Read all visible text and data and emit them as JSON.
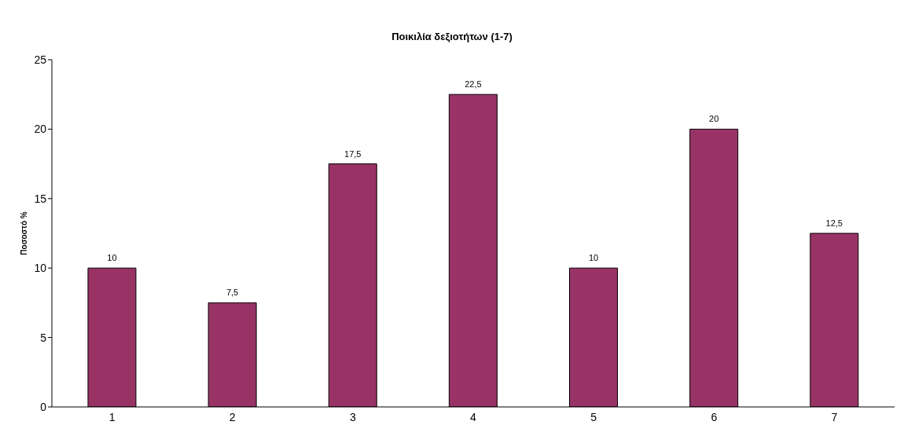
{
  "chart_data": {
    "type": "bar",
    "title": "Ποικιλία δεξιοτήτων (1-7)",
    "ylabel": "Ποσοστό %",
    "categories": [
      "1",
      "2",
      "3",
      "4",
      "5",
      "6",
      "7"
    ],
    "values": [
      10,
      7.5,
      17.5,
      22.5,
      10,
      20,
      12.5
    ],
    "value_labels": [
      "10",
      "7,5",
      "17,5",
      "22,5",
      "10",
      "20",
      "12,5"
    ],
    "color": "#993366",
    "ylim": [
      0,
      25
    ],
    "yticks": [
      0,
      5,
      10,
      15,
      20,
      25
    ],
    "grid": false
  }
}
